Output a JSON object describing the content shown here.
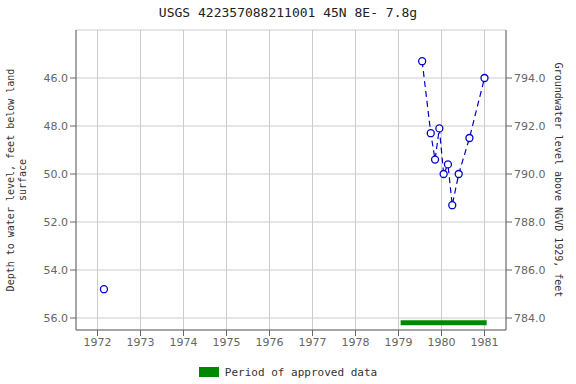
{
  "chart_data": {
    "type": "line",
    "title": "USGS 422357088211001 45N 8E- 7.8g",
    "ylabel": "Depth to water level, feet below land\nsurface",
    "y2label": "Groundwater level above NGVD 1929, feet",
    "xlim": [
      1971.5,
      1981.5
    ],
    "xticks": [
      1972,
      1973,
      1974,
      1975,
      1976,
      1977,
      1978,
      1979,
      1980,
      1981
    ],
    "ylim": [
      56.5,
      44.0
    ],
    "yticks": [
      {
        "value": 46.0,
        "label": "46.0"
      },
      {
        "value": 48.0,
        "label": "48.0"
      },
      {
        "value": 50.0,
        "label": "50.0"
      },
      {
        "value": 52.0,
        "label": "52.0"
      },
      {
        "value": 54.0,
        "label": "54.0"
      },
      {
        "value": 56.0,
        "label": "56.0"
      }
    ],
    "y2lim": [
      783.5,
      796.0
    ],
    "y2ticks": [
      {
        "value": 784.0,
        "label": "784.0"
      },
      {
        "value": 786.0,
        "label": "786.0"
      },
      {
        "value": 788.0,
        "label": "788.0"
      },
      {
        "value": 790.0,
        "label": "790.0"
      },
      {
        "value": 792.0,
        "label": "792.0"
      },
      {
        "value": 794.0,
        "label": "794.0"
      }
    ],
    "grid": true,
    "legend": "bottom",
    "series": [
      {
        "x": [
          1972.15
        ],
        "values": [
          54.8
        ],
        "color": "#0000cc",
        "marker": "circle",
        "line_style": "none"
      },
      {
        "x": [
          1979.55,
          1979.75,
          1979.85,
          1979.95,
          1980.05,
          1980.15,
          1980.25,
          1980.4,
          1980.65,
          1981.0
        ],
        "values": [
          45.3,
          48.3,
          49.4,
          48.1,
          50.0,
          49.6,
          51.3,
          50.0,
          48.5,
          46.0
        ],
        "color": "#0000cc",
        "marker": "circle",
        "line_style": "dashed"
      },
      {
        "name": "Period of approved data",
        "x": [
          1979.05,
          1981.05
        ],
        "values": [
          56.2,
          56.2
        ],
        "color": "#008800",
        "line_style": "solid"
      }
    ]
  }
}
